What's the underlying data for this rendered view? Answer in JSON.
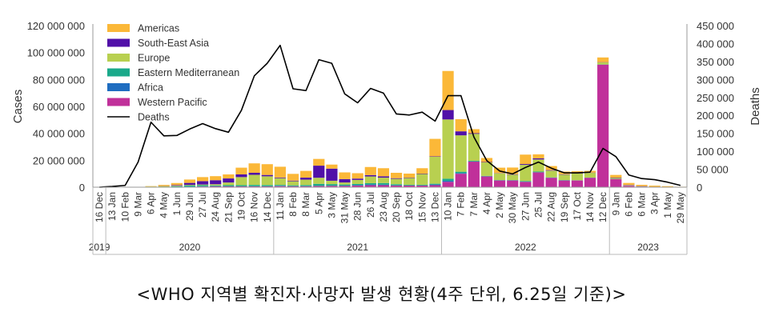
{
  "caption": "<WHO 지역별 확진자·사망자 발생 현황(4주 단위, 6.25일 기준)>",
  "chart_data": {
    "type": "bar",
    "stacked": true,
    "title": "",
    "ylabel": "Cases",
    "y2label": "Deaths",
    "ylim": [
      0,
      120000000
    ],
    "y2lim": [
      0,
      450000
    ],
    "yticks": [
      "0",
      "20 000 000",
      "40 000 000",
      "60 000 000",
      "80 000 000",
      "100 000 000",
      "120 000 000"
    ],
    "y2ticks": [
      "0",
      "50 000",
      "100 000",
      "150 000",
      "200 000",
      "250 000",
      "300 000",
      "350 000",
      "400 000",
      "450 000"
    ],
    "legend_position": "top-left",
    "categories": [
      "16 Dec",
      "13 Jan",
      "10 Feb",
      "9 Mar",
      "6 Apr",
      "4 May",
      "1 Jun",
      "29 Jun",
      "27 Jul",
      "24 Aug",
      "21 Sep",
      "19 Oct",
      "16 Nov",
      "14 Dec",
      "11 Jan",
      "8 Feb",
      "8 Mar",
      "5 Apr",
      "3 May",
      "31 May",
      "28 Jun",
      "26 Jul",
      "23 Aug",
      "20 Sep",
      "18 Oct",
      "15 Nov",
      "13 Dec",
      "10 Jan",
      "7 Feb",
      "7 Mar",
      "4 Apr",
      "2 May",
      "30 May",
      "27 Jun",
      "25 Jul",
      "22 Aug",
      "19 Sep",
      "17 Oct",
      "14 Nov",
      "12 Dec",
      "9 Jan",
      "6 Feb",
      "6 Mar",
      "3 Apr",
      "1 May",
      "29 May"
    ],
    "year_groups": [
      {
        "label": "2019",
        "start": 0,
        "end": 0
      },
      {
        "label": "2020",
        "start": 1,
        "end": 13
      },
      {
        "label": "2021",
        "start": 14,
        "end": 26
      },
      {
        "label": "2022",
        "start": 27,
        "end": 39
      },
      {
        "label": "2023",
        "start": 40,
        "end": 45
      }
    ],
    "series": [
      {
        "name": "Western Pacific",
        "color": "#c0309a",
        "values": [
          0,
          0,
          0,
          0,
          0,
          0,
          0.1,
          0.3,
          0.5,
          0.6,
          0.6,
          0.6,
          0.6,
          0.6,
          0.8,
          0.7,
          0.7,
          0.9,
          1,
          1,
          1.2,
          1.5,
          1.5,
          1.2,
          1.2,
          1.2,
          1.5,
          4,
          10,
          19,
          8,
          5,
          5,
          4,
          11,
          7,
          5,
          5,
          7,
          91,
          6,
          1,
          0.2,
          0.1,
          0.1,
          0.05
        ]
      },
      {
        "name": "Africa",
        "color": "#1f6dc0",
        "values": [
          0,
          0,
          0,
          0,
          0,
          0,
          0.1,
          0.1,
          0.2,
          0.2,
          0.2,
          0.1,
          0.1,
          0.1,
          0.2,
          0.1,
          0.1,
          0.1,
          0.1,
          0.2,
          0.4,
          0.5,
          0.4,
          0.2,
          0.1,
          0.1,
          0.5,
          0.8,
          0.5,
          0.1,
          0.1,
          0.1,
          0.1,
          0.1,
          0.1,
          0.1,
          0.1,
          0.05,
          0.05,
          0.05,
          0.02,
          0.01,
          0.01,
          0.01,
          0.01,
          0
        ]
      },
      {
        "name": "Eastern Mediterranean",
        "color": "#1aa98a",
        "values": [
          0,
          0,
          0,
          0,
          0,
          0.3,
          0.5,
          0.8,
          0.8,
          0.5,
          0.7,
          0.8,
          1,
          0.9,
          0.7,
          0.6,
          0.8,
          1.5,
          1.2,
          0.8,
          0.8,
          1,
          1.2,
          0.8,
          0.5,
          0.5,
          0.6,
          1.5,
          1,
          0.5,
          0.3,
          0.2,
          0.2,
          0.5,
          0.5,
          0.2,
          0.2,
          0.1,
          0.1,
          0.1,
          0.1,
          0.05,
          0.05,
          0.05,
          0.05,
          0
        ]
      },
      {
        "name": "Europe",
        "color": "#b8d050",
        "values": [
          0,
          0,
          0,
          0.1,
          0.5,
          0.5,
          0.4,
          0.5,
          0.5,
          0.9,
          2,
          6,
          7.5,
          6.5,
          5,
          3,
          4,
          4.5,
          2.5,
          1.5,
          3,
          5,
          4,
          4,
          5,
          8,
          20,
          44,
          27,
          20,
          10,
          5,
          4,
          12,
          9,
          5,
          4,
          5,
          3.5,
          1.5,
          0.7,
          0.3,
          0.2,
          0.1,
          0.05,
          0
        ]
      },
      {
        "name": "South-East Asia",
        "color": "#5010a8",
        "values": [
          0,
          0,
          0,
          0,
          0,
          0.1,
          0.5,
          1.5,
          2.5,
          3,
          3,
          2,
          1.5,
          1,
          0.5,
          0.5,
          1.5,
          9,
          9,
          2.5,
          1,
          1,
          1,
          0.5,
          0.3,
          0.3,
          0.3,
          7,
          3,
          0.5,
          0.3,
          0.2,
          0.3,
          0.6,
          0.8,
          0.4,
          0.3,
          0.2,
          0.2,
          0.2,
          0.3,
          0.3,
          0.3,
          0.1,
          0.05,
          0
        ]
      },
      {
        "name": "Americas",
        "color": "#fbb838",
        "values": [
          0,
          0,
          0,
          0.05,
          0.3,
          0.8,
          1.5,
          2.5,
          3,
          3,
          3,
          5,
          7,
          8,
          8,
          5,
          5,
          5,
          3,
          5,
          4,
          6,
          6,
          4,
          3,
          4,
          13,
          29,
          9,
          3,
          3,
          4,
          5,
          7,
          3,
          3,
          2,
          1.5,
          1.3,
          3.5,
          2,
          1.5,
          1,
          0.8,
          0.5,
          0.3
        ]
      }
    ],
    "deaths": {
      "name": "Deaths",
      "color": "#000000",
      "values": [
        0,
        2000,
        5000,
        70000,
        181000,
        143000,
        144000,
        162000,
        177000,
        163000,
        153000,
        214000,
        310000,
        345000,
        395000,
        274000,
        269000,
        355000,
        345000,
        260000,
        235000,
        275000,
        262000,
        204000,
        201000,
        209000,
        184000,
        255000,
        255000,
        140000,
        74000,
        45000,
        37000,
        55000,
        70000,
        53000,
        40000,
        40000,
        42000,
        108000,
        85000,
        34000,
        24000,
        21000,
        14000,
        5000
      ]
    },
    "legend": [
      "Americas",
      "South-East Asia",
      "Europe",
      "Eastern Mediterranean",
      "Africa",
      "Western Pacific",
      "Deaths"
    ]
  }
}
